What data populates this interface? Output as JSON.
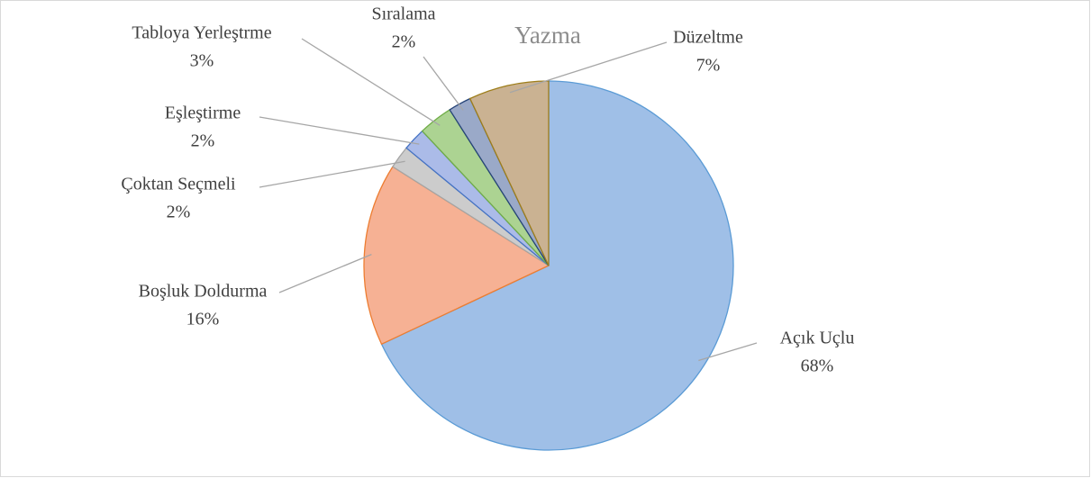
{
  "chart_data": {
    "type": "pie",
    "title": "Yazma",
    "categories": [
      "Açık Uçlu",
      "Boşluk Doldurma",
      "Çoktan Seçmeli",
      "Eşleştirme",
      "Tabloya Yerleştrme",
      "Sıralama",
      "Düzeltme"
    ],
    "values": [
      68,
      16,
      2,
      2,
      3,
      2,
      7
    ],
    "value_labels": [
      "68%",
      "16%",
      "2%",
      "2%",
      "3%",
      "2%",
      "7%"
    ],
    "colors": [
      "#9fbfe7",
      "#f6b194",
      "#cccccc",
      "#abbbe8",
      "#acd392",
      "#9aa9c8",
      "#cab292"
    ],
    "edge_colors": [
      "#5b9bd5",
      "#ed7d31",
      "#a5a5a5",
      "#4472c4",
      "#70ad47",
      "#264478",
      "#9e7e1a"
    ]
  }
}
